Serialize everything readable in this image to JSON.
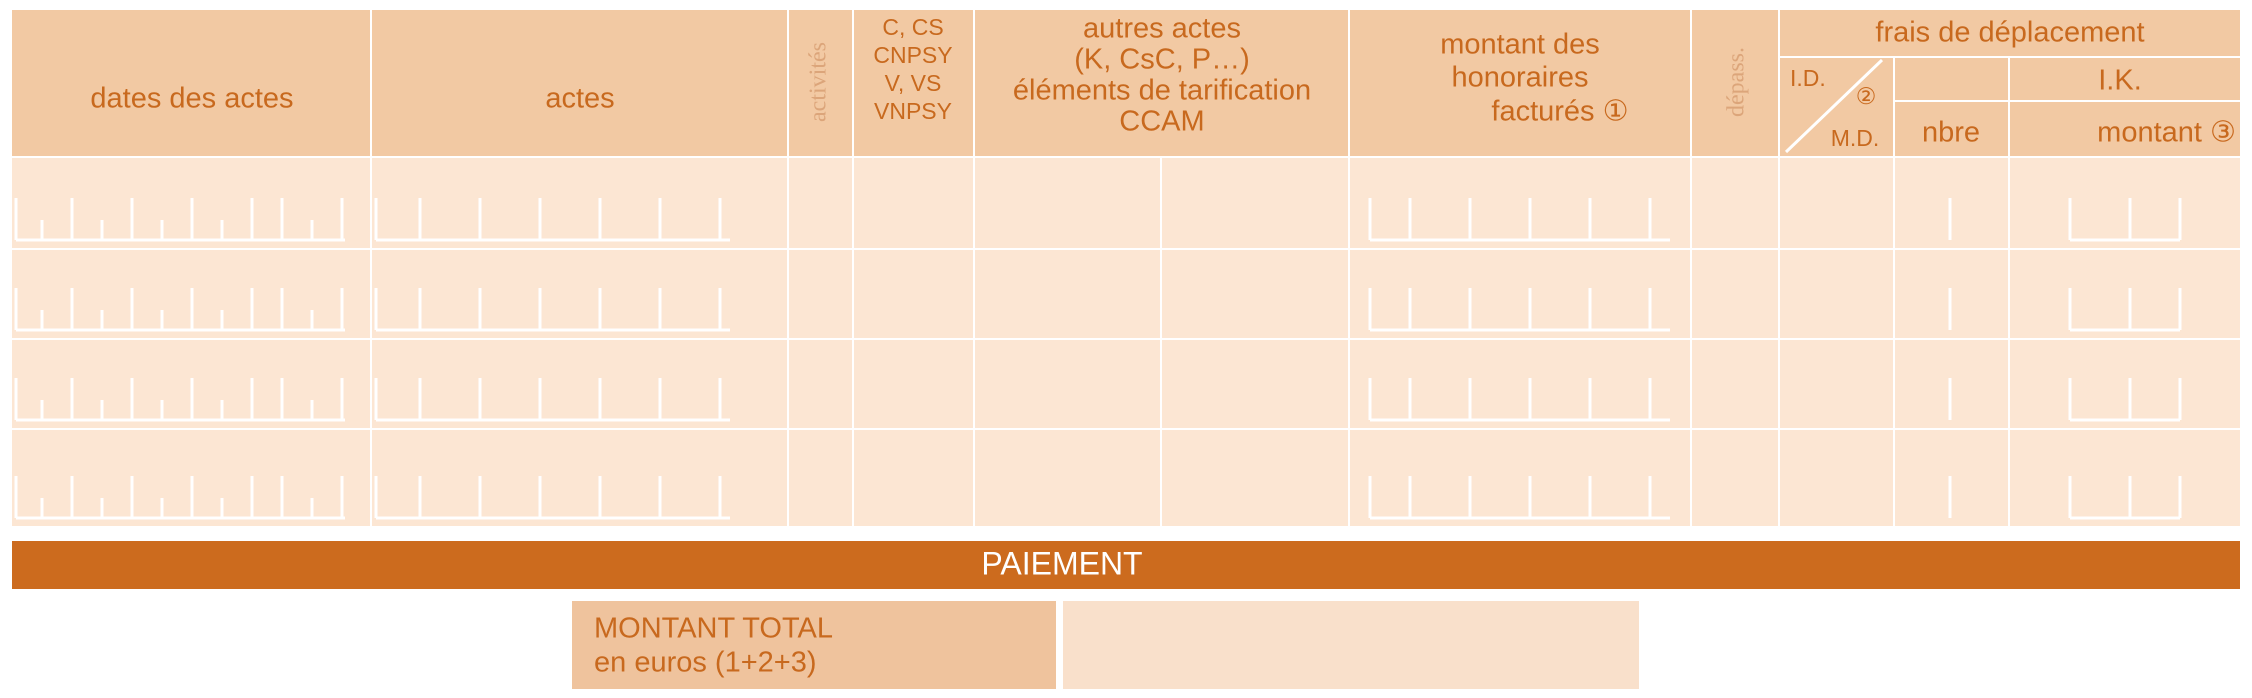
{
  "header": {
    "dates": "dates des actes",
    "actes": "actes",
    "activites": "activités",
    "c_cs": [
      "C, CS",
      "CNPSY",
      "V, VS",
      "VNPSY"
    ],
    "autres_actes": [
      "autres actes",
      "(K, CsC, P…)",
      "éléments de tarification",
      "CCAM"
    ],
    "montant": [
      "montant des",
      "honoraires",
      "facturés ①"
    ],
    "depass": "dépass.",
    "frais": "frais de déplacement",
    "id": "I.D.",
    "circle2": "②",
    "md": "M.D.",
    "ik": "I.K.",
    "nbre": "nbre",
    "ik_montant": "montant ③"
  },
  "payment": {
    "title": "PAIEMENT",
    "total_label": [
      "MONTANT TOTAL",
      "en euros (1+2+3)"
    ]
  }
}
